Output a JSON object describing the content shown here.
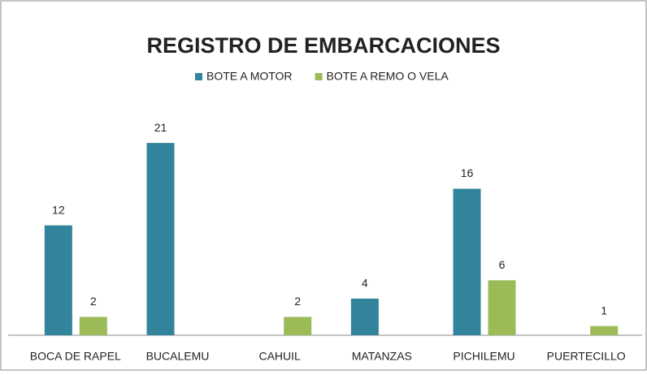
{
  "chart_data": {
    "type": "bar",
    "title": "REGISTRO DE EMBARCACIONES",
    "categories": [
      "BOCA DE RAPEL",
      "BUCALEMU",
      "CAHUIL",
      "MATANZAS",
      "PICHILEMU",
      "PUERTECILLO"
    ],
    "series": [
      {
        "name": "BOTE A MOTOR",
        "color": "#31849b",
        "values": [
          12,
          21,
          null,
          4,
          16,
          null
        ]
      },
      {
        "name": "BOTE A REMO O VELA",
        "color": "#9bbb59",
        "values": [
          2,
          null,
          2,
          null,
          6,
          1
        ]
      }
    ],
    "ylim": [
      0,
      25
    ],
    "legend": "top"
  }
}
